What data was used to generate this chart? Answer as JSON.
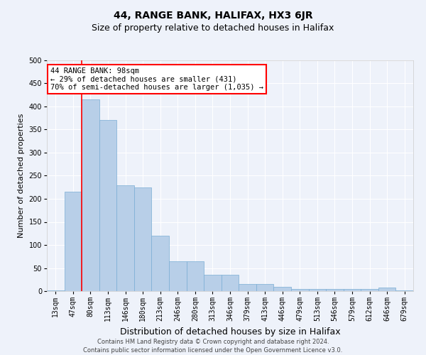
{
  "title": "44, RANGE BANK, HALIFAX, HX3 6JR",
  "subtitle": "Size of property relative to detached houses in Halifax",
  "xlabel": "Distribution of detached houses by size in Halifax",
  "ylabel": "Number of detached properties",
  "categories": [
    "13sqm",
    "47sqm",
    "80sqm",
    "113sqm",
    "146sqm",
    "180sqm",
    "213sqm",
    "246sqm",
    "280sqm",
    "313sqm",
    "346sqm",
    "379sqm",
    "413sqm",
    "446sqm",
    "479sqm",
    "513sqm",
    "546sqm",
    "579sqm",
    "612sqm",
    "646sqm",
    "679sqm"
  ],
  "values": [
    2,
    215,
    415,
    370,
    230,
    225,
    120,
    65,
    65,
    35,
    35,
    15,
    15,
    10,
    5,
    5,
    5,
    5,
    5,
    8,
    2
  ],
  "bar_color": "#b8cfe8",
  "bar_edge_color": "#7aadd4",
  "red_line_index": 2,
  "ylim": [
    0,
    500
  ],
  "yticks": [
    0,
    50,
    100,
    150,
    200,
    250,
    300,
    350,
    400,
    450,
    500
  ],
  "annotation_title": "44 RANGE BANK: 98sqm",
  "annotation_line1": "← 29% of detached houses are smaller (431)",
  "annotation_line2": "70% of semi-detached houses are larger (1,035) →",
  "footer_line1": "Contains HM Land Registry data © Crown copyright and database right 2024.",
  "footer_line2": "Contains public sector information licensed under the Open Government Licence v3.0.",
  "background_color": "#eef2fa",
  "plot_bg_color": "#eef2fa",
  "grid_color": "#ffffff",
  "title_fontsize": 10,
  "subtitle_fontsize": 9,
  "xlabel_fontsize": 9,
  "ylabel_fontsize": 8,
  "tick_fontsize": 7,
  "ann_fontsize": 7.5,
  "footer_fontsize": 6
}
